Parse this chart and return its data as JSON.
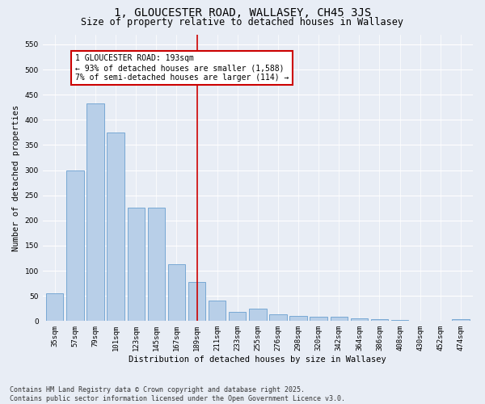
{
  "title": "1, GLOUCESTER ROAD, WALLASEY, CH45 3JS",
  "subtitle": "Size of property relative to detached houses in Wallasey",
  "xlabel": "Distribution of detached houses by size in Wallasey",
  "ylabel": "Number of detached properties",
  "categories": [
    "35sqm",
    "57sqm",
    "79sqm",
    "101sqm",
    "123sqm",
    "145sqm",
    "167sqm",
    "189sqm",
    "211sqm",
    "233sqm",
    "255sqm",
    "276sqm",
    "298sqm",
    "320sqm",
    "342sqm",
    "364sqm",
    "386sqm",
    "408sqm",
    "430sqm",
    "452sqm",
    "474sqm"
  ],
  "values": [
    55,
    300,
    432,
    375,
    225,
    225,
    113,
    78,
    40,
    18,
    25,
    13,
    10,
    9,
    8,
    5,
    4,
    2,
    1,
    1,
    3
  ],
  "bar_color": "#b8cfe8",
  "bar_edge_color": "#6a9fd0",
  "vline_x_index": 7,
  "vline_color": "#cc0000",
  "annotation_text": "1 GLOUCESTER ROAD: 193sqm\n← 93% of detached houses are smaller (1,588)\n7% of semi-detached houses are larger (114) →",
  "annotation_box_color": "#ffffff",
  "annotation_box_edge_color": "#cc0000",
  "ylim": [
    0,
    570
  ],
  "yticks": [
    0,
    50,
    100,
    150,
    200,
    250,
    300,
    350,
    400,
    450,
    500,
    550
  ],
  "bg_color": "#e8edf5",
  "plot_bg_color": "#e8edf5",
  "footer_text": "Contains HM Land Registry data © Crown copyright and database right 2025.\nContains public sector information licensed under the Open Government Licence v3.0.",
  "title_fontsize": 10,
  "subtitle_fontsize": 8.5,
  "axis_label_fontsize": 7.5,
  "tick_fontsize": 6.5,
  "footer_fontsize": 6,
  "annotation_fontsize": 7
}
